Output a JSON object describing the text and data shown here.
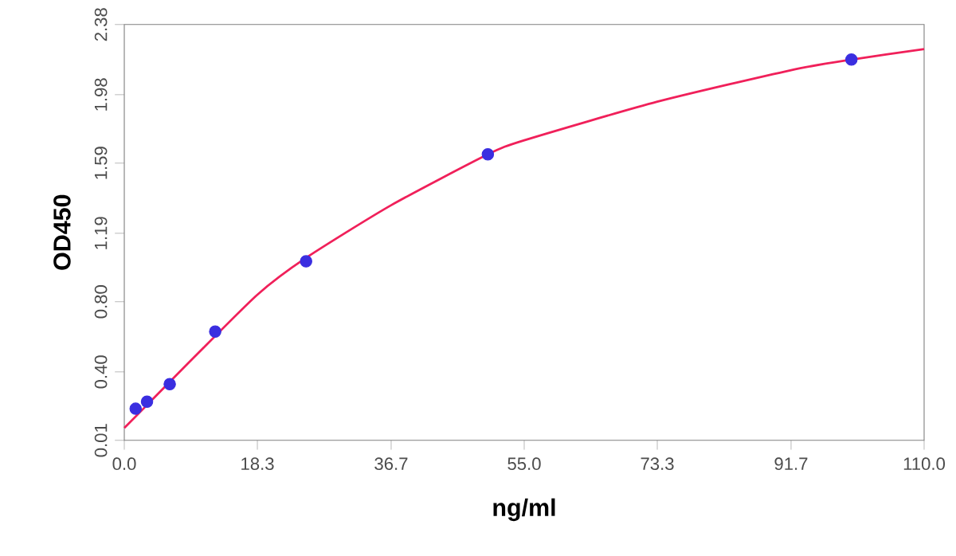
{
  "chart_data": {
    "type": "scatter",
    "xlabel": "ng/ml",
    "ylabel": "OD450",
    "xlim": [
      0,
      110
    ],
    "ylim": [
      0.01,
      2.38
    ],
    "xticks": [
      {
        "value": 0,
        "label": "0.0"
      },
      18.3,
      36.7,
      {
        "value": 55,
        "label": "55.0"
      },
      73.3,
      91.7,
      {
        "value": 110,
        "label": "110.0"
      }
    ],
    "yticks": [
      0.01,
      {
        "value": 0.4,
        "label": "0.40"
      },
      {
        "value": 0.8,
        "label": "0.80"
      },
      1.19,
      1.59,
      1.98,
      2.38
    ],
    "grid": false,
    "series": [
      {
        "type": "line",
        "color": "#f0205a",
        "marker": "none",
        "x": [
          0,
          5,
          10,
          18.3,
          25,
          36.7,
          50,
          55,
          73.3,
          91.7,
          100,
          110
        ],
        "values": [
          0.08,
          0.29,
          0.5,
          0.84,
          1.05,
          1.35,
          1.64,
          1.72,
          1.94,
          2.12,
          2.18,
          2.24
        ]
      },
      {
        "color": "#3a2ee0",
        "marker": "circle",
        "x": [
          1.56,
          3.125,
          6.25,
          12.5,
          25,
          50,
          100
        ],
        "values": [
          0.19,
          0.23,
          0.33,
          0.63,
          1.03,
          1.64,
          2.18
        ]
      }
    ]
  }
}
